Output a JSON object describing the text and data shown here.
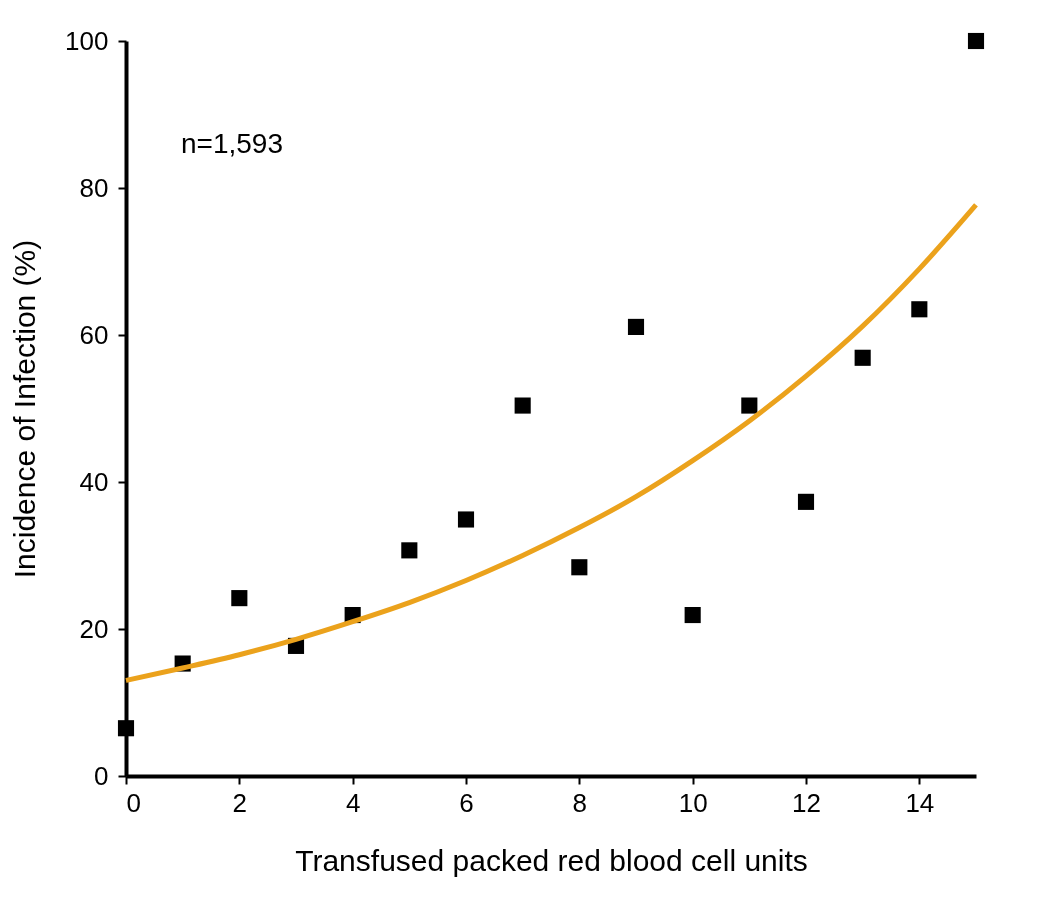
{
  "chart_data": {
    "type": "scatter",
    "xlabel": "Transfused packed red blood cell units",
    "ylabel": "Incidence of Infection (%)",
    "xlim": [
      0,
      15
    ],
    "xticks": [
      0,
      2,
      4,
      6,
      8,
      10,
      12,
      14
    ],
    "ylim": [
      0,
      100
    ],
    "yticks": [
      0,
      20,
      40,
      60,
      80,
      100
    ],
    "grid": false,
    "annotations": [
      "n=1,593"
    ],
    "series": [
      {
        "color": "#000000",
        "marker": "square",
        "x": [
          0,
          1,
          2,
          3,
          4,
          5,
          6,
          7,
          8,
          9,
          10,
          11,
          12,
          13,
          14,
          15
        ],
        "values": [
          6.5,
          15.3,
          24.2,
          17.7,
          21.9,
          30.7,
          34.9,
          50.4,
          28.4,
          61.1,
          21.9,
          50.4,
          37.3,
          56.9,
          63.5,
          100
        ]
      },
      {
        "type": "line",
        "color": "#eba21c",
        "marker": "none",
        "line_style": "solid",
        "x": [
          0,
          1,
          2,
          3,
          4,
          5,
          6,
          7,
          8,
          9,
          10,
          11,
          12,
          13,
          14,
          15
        ],
        "values": [
          13.0,
          14.7,
          16.5,
          18.6,
          21.0,
          23.6,
          26.6,
          30.0,
          33.8,
          38.0,
          42.9,
          48.3,
          54.4,
          61.2,
          69.0,
          77.7
        ]
      }
    ]
  }
}
